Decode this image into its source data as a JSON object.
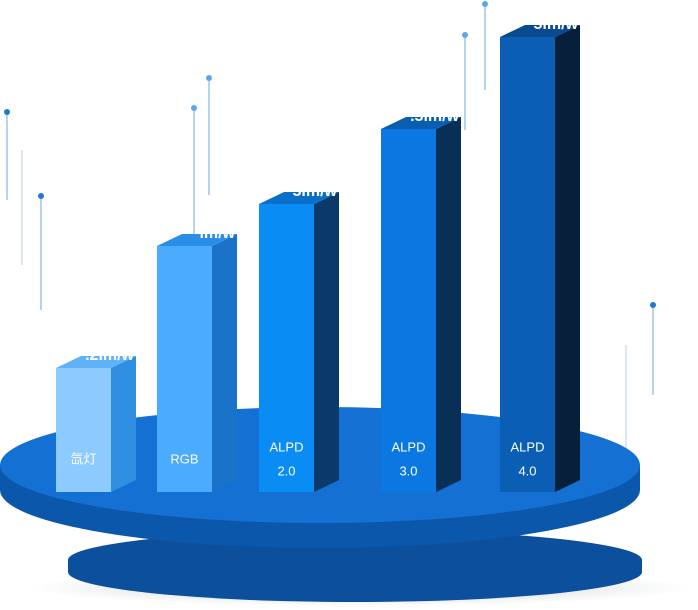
{
  "bars": [
    {
      "label": [
        "氙灯"
      ],
      "value_label": ".2lm/w"
    },
    {
      "label": [
        "RGB"
      ],
      "value_label": "lm/w"
    },
    {
      "label": [
        "ALPD",
        "2.0"
      ],
      "value_label": "5lm/w"
    },
    {
      "label": [
        "ALPD",
        "3.0"
      ],
      "value_label": ".5lm/w"
    },
    {
      "label": [
        "ALPD",
        "4.0"
      ],
      "value_label": "5lm/w"
    }
  ]
}
